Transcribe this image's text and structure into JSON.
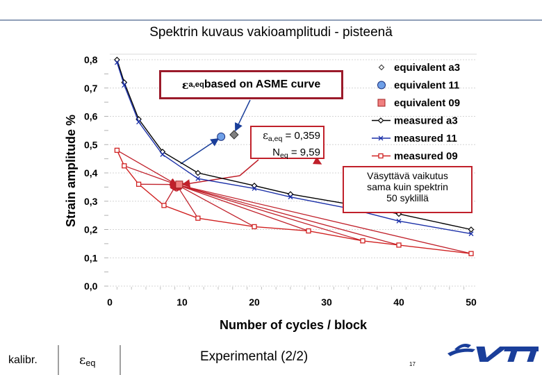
{
  "title": "Spektrin kuvaus vakioamplitudi - pisteenä",
  "chart_data": {
    "type": "line",
    "xlabel": "Number of cycles / block",
    "ylabel": "Strain amplitude  %",
    "xlim": [
      0,
      50
    ],
    "ylim": [
      0,
      0.8
    ],
    "x_ticks": [
      "0",
      "10",
      "20",
      "30",
      "40",
      "50"
    ],
    "y_ticks": [
      "0,0",
      "0,1",
      "0,2",
      "0,3",
      "0,4",
      "0,5",
      "0,6",
      "0,7",
      "0,8"
    ],
    "legend_position": "top-right",
    "series": [
      {
        "name": "equivalent a3",
        "kind": "marker",
        "marker": "diamond",
        "color": "#808080",
        "points": [
          {
            "x": 17.2,
            "y": 0.535
          }
        ]
      },
      {
        "name": "equivalent 11",
        "kind": "marker",
        "marker": "circle",
        "color": "#6fa0e8",
        "points": [
          {
            "x": 15.4,
            "y": 0.528
          }
        ]
      },
      {
        "name": "equivalent 09",
        "kind": "marker",
        "marker": "square",
        "color": "#f08080",
        "points": [
          {
            "x": 9.6,
            "y": 0.359
          }
        ]
      },
      {
        "name": "measured a3",
        "kind": "line",
        "marker": "diamond-open",
        "color": "#000000",
        "points": [
          {
            "x": 1,
            "y": 0.8
          },
          {
            "x": 2,
            "y": 0.72
          },
          {
            "x": 4,
            "y": 0.59
          },
          {
            "x": 7.3,
            "y": 0.475
          },
          {
            "x": 12.2,
            "y": 0.4
          },
          {
            "x": 20,
            "y": 0.355
          },
          {
            "x": 25,
            "y": 0.325
          },
          {
            "x": 33,
            "y": 0.29
          },
          {
            "x": 40,
            "y": 0.255
          },
          {
            "x": 50,
            "y": 0.2
          }
        ]
      },
      {
        "name": "measured 11",
        "kind": "line",
        "marker": "x",
        "color": "#1a2fa8",
        "points": [
          {
            "x": 1,
            "y": 0.79
          },
          {
            "x": 2,
            "y": 0.71
          },
          {
            "x": 4,
            "y": 0.58
          },
          {
            "x": 7.3,
            "y": 0.465
          },
          {
            "x": 12.2,
            "y": 0.38
          },
          {
            "x": 20,
            "y": 0.345
          },
          {
            "x": 25,
            "y": 0.315
          },
          {
            "x": 33,
            "y": 0.275
          },
          {
            "x": 40,
            "y": 0.23
          },
          {
            "x": 50,
            "y": 0.185
          }
        ]
      },
      {
        "name": "measured 09",
        "kind": "line",
        "marker": "square-open",
        "color": "#d02020",
        "points": [
          {
            "x": 1,
            "y": 0.48
          },
          {
            "x": 2,
            "y": 0.425
          },
          {
            "x": 4,
            "y": 0.36
          },
          {
            "x": 7.5,
            "y": 0.285
          },
          {
            "x": 12.2,
            "y": 0.24
          },
          {
            "x": 20,
            "y": 0.21
          },
          {
            "x": 27.5,
            "y": 0.195
          },
          {
            "x": 35,
            "y": 0.16
          },
          {
            "x": 40,
            "y": 0.145
          },
          {
            "x": 50,
            "y": 0.115
          }
        ]
      }
    ],
    "annotations": {
      "asme": {
        "prefix": "ε",
        "sub": "a,eq",
        "text": " based on ASME curve"
      },
      "eq_values": {
        "prefix": "ε",
        "sub1": "a,eq",
        "val1": " = 0,359",
        "n": "N",
        "sub2": "eq",
        "val2": " = 9,59"
      },
      "vaikutus": [
        "Väsyttävä vaikutus",
        "sama kuin spektrin",
        "50 syklillä"
      ]
    }
  },
  "footer": {
    "left": "kalibr.",
    "mid_symbol": "ε",
    "mid_sub": "eq",
    "center": "Experimental (2/2)",
    "page": "17"
  },
  "colors": {
    "accent_red": "#c0202a",
    "vtt_blue": "#1a3e9a",
    "grid": "#d0d0d0"
  }
}
